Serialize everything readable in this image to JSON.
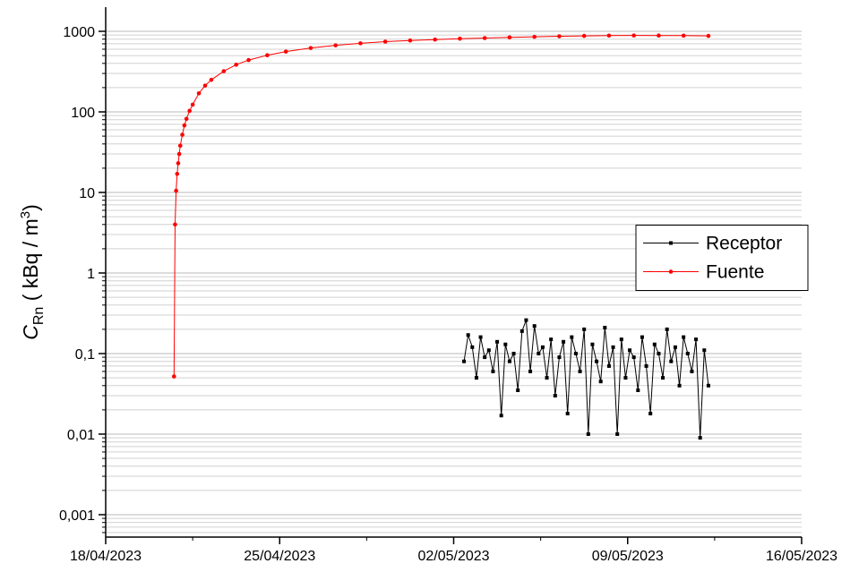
{
  "chart_data": {
    "type": "line",
    "ylabel": {
      "main": "C",
      "sub": "Rn",
      "text": " ( kBq / m",
      "sup": "3",
      "end": ")"
    },
    "log_y": true,
    "grid": true,
    "legend_position": "right",
    "xlim": [
      "2023-04-18 00:00",
      "2023-05-16 00:00"
    ],
    "xticks": [
      {
        "value": "2023-04-18 00:00",
        "label": "18/04/2023"
      },
      {
        "value": "2023-04-25 00:00",
        "label": "25/04/2023"
      },
      {
        "value": "2023-05-02 00:00",
        "label": "02/05/2023"
      },
      {
        "value": "2023-05-09 00:00",
        "label": "09/05/2023"
      },
      {
        "value": "2023-05-16 00:00",
        "label": "16/05/2023"
      }
    ],
    "ylim": [
      0.000527,
      1995
    ],
    "yticks": [
      {
        "value": 0.001,
        "label": "0,001"
      },
      {
        "value": 0.01,
        "label": "0,01"
      },
      {
        "value": 0.1,
        "label": "0,1"
      },
      1,
      10,
      100,
      1000
    ],
    "series": [
      {
        "name": "Receptor",
        "color": "#000000",
        "marker": "square",
        "x": [
          "2023-05-02 10:00",
          "2023-05-02 14:00",
          "2023-05-02 18:00",
          "2023-05-02 22:00",
          "2023-05-03 02:00",
          "2023-05-03 06:00",
          "2023-05-03 10:00",
          "2023-05-03 14:00",
          "2023-05-03 18:00",
          "2023-05-03 22:00",
          "2023-05-04 02:00",
          "2023-05-04 06:00",
          "2023-05-04 10:00",
          "2023-05-04 14:00",
          "2023-05-04 18:00",
          "2023-05-04 22:00",
          "2023-05-05 02:00",
          "2023-05-05 06:00",
          "2023-05-05 10:00",
          "2023-05-05 14:00",
          "2023-05-05 18:00",
          "2023-05-05 22:00",
          "2023-05-06 02:00",
          "2023-05-06 06:00",
          "2023-05-06 10:00",
          "2023-05-06 14:00",
          "2023-05-06 18:00",
          "2023-05-06 22:00",
          "2023-05-07 02:00",
          "2023-05-07 06:00",
          "2023-05-07 10:00",
          "2023-05-07 14:00",
          "2023-05-07 18:00",
          "2023-05-07 22:00",
          "2023-05-08 02:00",
          "2023-05-08 06:00",
          "2023-05-08 10:00",
          "2023-05-08 14:00",
          "2023-05-08 18:00",
          "2023-05-08 22:00",
          "2023-05-09 02:00",
          "2023-05-09 06:00",
          "2023-05-09 10:00",
          "2023-05-09 14:00",
          "2023-05-09 18:00",
          "2023-05-09 22:00",
          "2023-05-10 02:00",
          "2023-05-10 06:00",
          "2023-05-10 10:00",
          "2023-05-10 14:00",
          "2023-05-10 18:00",
          "2023-05-10 22:00",
          "2023-05-11 02:00",
          "2023-05-11 06:00",
          "2023-05-11 10:00",
          "2023-05-11 14:00",
          "2023-05-11 18:00",
          "2023-05-11 22:00",
          "2023-05-12 02:00",
          "2023-05-12 06:00"
        ],
        "values": [
          0.08,
          0.17,
          0.12,
          0.05,
          0.16,
          0.09,
          0.11,
          0.06,
          0.14,
          0.017,
          0.13,
          0.08,
          0.1,
          0.035,
          0.19,
          0.26,
          0.06,
          0.22,
          0.1,
          0.12,
          0.05,
          0.15,
          0.03,
          0.09,
          0.14,
          0.018,
          0.16,
          0.1,
          0.06,
          0.2,
          0.01,
          0.13,
          0.08,
          0.045,
          0.21,
          0.07,
          0.12,
          0.01,
          0.15,
          0.05,
          0.11,
          0.09,
          0.035,
          0.16,
          0.07,
          0.018,
          0.13,
          0.1,
          0.05,
          0.2,
          0.08,
          0.12,
          0.04,
          0.16,
          0.1,
          0.06,
          0.15,
          0.009,
          0.11,
          0.04
        ]
      },
      {
        "name": "Fuente",
        "color": "#ff0000",
        "marker": "circle",
        "x": [
          "2023-04-20 18:00",
          "2023-04-20 19:00",
          "2023-04-20 20:00",
          "2023-04-20 21:00",
          "2023-04-20 22:00",
          "2023-04-20 23:00",
          "2023-04-21 00:00",
          "2023-04-21 02:00",
          "2023-04-21 04:00",
          "2023-04-21 06:00",
          "2023-04-21 09:00",
          "2023-04-21 12:00",
          "2023-04-21 18:00",
          "2023-04-22 00:00",
          "2023-04-22 06:00",
          "2023-04-22 18:00",
          "2023-04-23 06:00",
          "2023-04-23 18:00",
          "2023-04-24 12:00",
          "2023-04-25 06:00",
          "2023-04-26 06:00",
          "2023-04-27 06:00",
          "2023-04-28 06:00",
          "2023-04-29 06:00",
          "2023-04-30 06:00",
          "2023-05-01 06:00",
          "2023-05-02 06:00",
          "2023-05-03 06:00",
          "2023-05-04 06:00",
          "2023-05-05 06:00",
          "2023-05-06 06:00",
          "2023-05-07 06:00",
          "2023-05-08 06:00",
          "2023-05-09 06:00",
          "2023-05-10 06:00",
          "2023-05-11 06:00",
          "2023-05-12 06:00"
        ],
        "values": [
          0.052,
          4,
          10.5,
          17,
          23,
          30,
          38,
          52,
          68,
          82,
          103,
          123,
          170,
          212,
          250,
          320,
          385,
          440,
          505,
          560,
          620,
          670,
          710,
          745,
          770,
          790,
          810,
          825,
          840,
          855,
          868,
          878,
          885,
          888,
          886,
          884,
          878
        ]
      }
    ]
  }
}
